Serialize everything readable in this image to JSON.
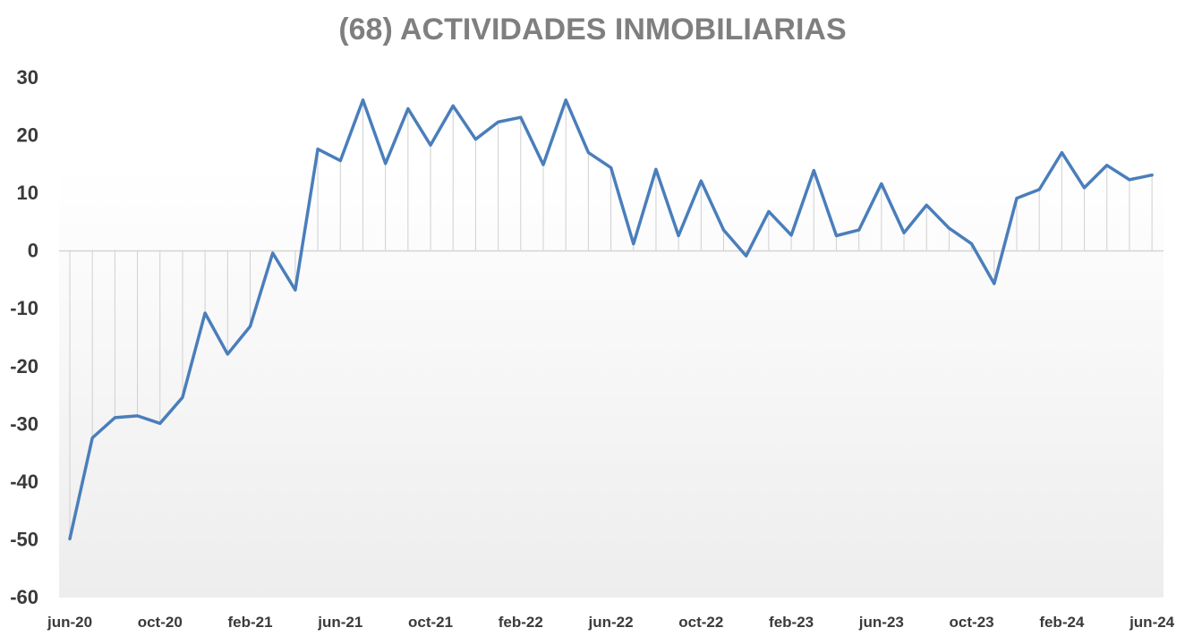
{
  "chart_data": {
    "type": "line",
    "title": "(68) ACTIVIDADES INMOBILIARIAS",
    "xlabel": "",
    "ylabel": "",
    "ylim": [
      -60,
      30
    ],
    "yticks": [
      30,
      20,
      10,
      0,
      -10,
      -20,
      -30,
      -40,
      -50,
      -60
    ],
    "x_tick_labels": [
      "jun-20",
      "oct-20",
      "feb-21",
      "jun-21",
      "oct-21",
      "feb-22",
      "jun-22",
      "oct-22",
      "feb-23",
      "jun-23",
      "oct-23",
      "feb-24",
      "jun-24"
    ],
    "x": [
      "jun-20",
      "jul-20",
      "ago-20",
      "sep-20",
      "oct-20",
      "nov-20",
      "dic-20",
      "ene-21",
      "feb-21",
      "mar-21",
      "abr-21",
      "may-21",
      "jun-21",
      "jul-21",
      "ago-21",
      "sep-21",
      "oct-21",
      "nov-21",
      "dic-21",
      "ene-22",
      "feb-22",
      "mar-22",
      "abr-22",
      "may-22",
      "jun-22",
      "jul-22",
      "ago-22",
      "sep-22",
      "oct-22",
      "nov-22",
      "dic-22",
      "ene-23",
      "feb-23",
      "mar-23",
      "abr-23",
      "may-23",
      "jun-23",
      "jul-23",
      "ago-23",
      "sep-23",
      "oct-23",
      "nov-23",
      "dic-23",
      "ene-24",
      "feb-24",
      "mar-24",
      "abr-24",
      "may-24",
      "jun-24"
    ],
    "series": [
      {
        "color": "#4a7ebb",
        "values": [
          -50.0,
          -32.5,
          -29.0,
          -28.7,
          -30.0,
          -25.5,
          -10.9,
          -18.0,
          -13.2,
          -0.5,
          -6.9,
          17.5,
          15.5,
          26.0,
          15.0,
          24.5,
          18.2,
          25.0,
          19.2,
          22.2,
          23.0,
          14.8,
          26.0,
          16.9,
          14.3,
          1.1,
          14.0,
          2.5,
          12.0,
          3.5,
          -1.0,
          6.7,
          2.6,
          13.8,
          2.5,
          3.5,
          11.5,
          3.0,
          7.8,
          3.8,
          1.1,
          -5.8,
          9.0,
          10.5,
          16.9,
          10.8,
          14.7,
          12.2,
          13.0
        ]
      }
    ],
    "grid": "vertical drop lines per point",
    "legend": "none"
  }
}
